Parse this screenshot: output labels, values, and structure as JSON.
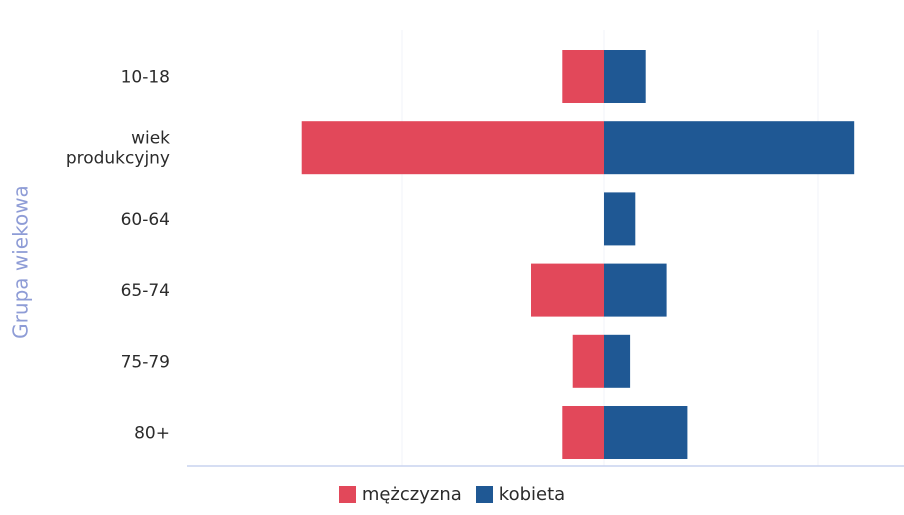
{
  "chart_data": {
    "type": "bar",
    "orientation": "horizontal",
    "stacked": "diverging",
    "categories": [
      "10-18",
      "wiek produkcyjny",
      "60-64",
      "65-74",
      "75-79",
      "80+"
    ],
    "category_lines": [
      [
        "10-18"
      ],
      [
        "wiek",
        "produkcyjny"
      ],
      [
        "60-64"
      ],
      [
        "65-74"
      ],
      [
        "75-79"
      ],
      [
        "80+"
      ]
    ],
    "series": [
      {
        "name": "mężczyzna",
        "color": "#e2485a",
        "values": [
          -4,
          -29,
          0,
          -7,
          -3,
          -4
        ]
      },
      {
        "name": "kobieta",
        "color": "#1f5894",
        "values": [
          4,
          24,
          3,
          6,
          2.5,
          8
        ]
      }
    ],
    "ylabel": "Grupa wiekowa",
    "xlabel": "",
    "xlim": [
      -40,
      29
    ],
    "grid": false,
    "legend": "bottom-center"
  }
}
